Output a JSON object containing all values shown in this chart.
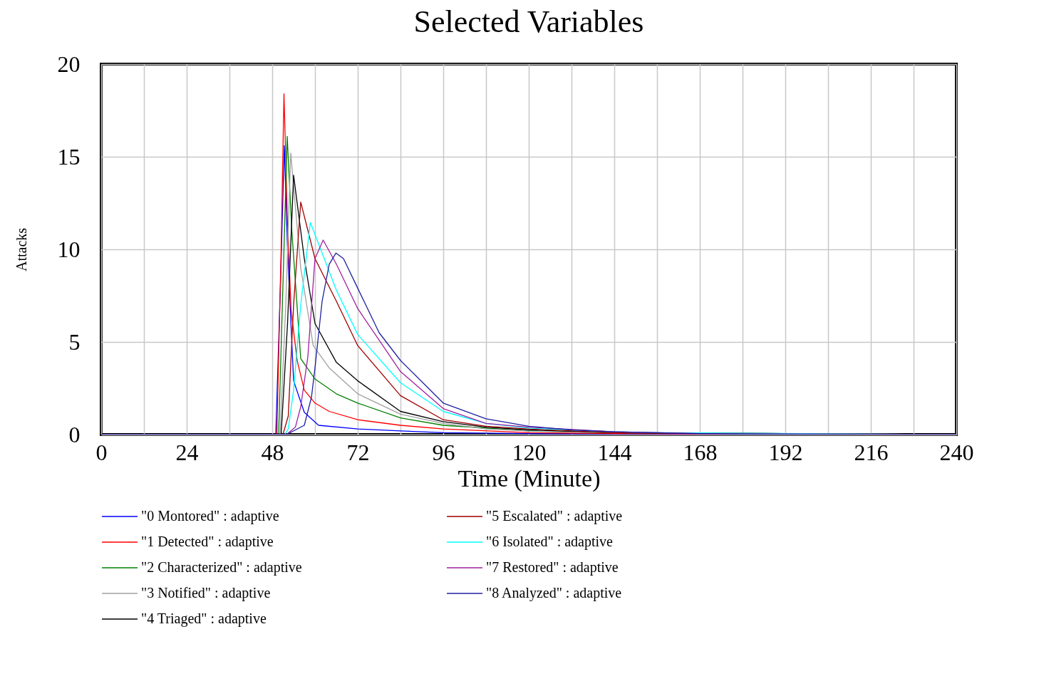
{
  "chart_data": {
    "type": "line",
    "title": "Selected Variables",
    "xlabel": "Time (Minute)",
    "ylabel": "Attacks",
    "xlim": [
      0,
      240
    ],
    "ylim": [
      0,
      20
    ],
    "xticks": [
      0,
      {
        "value": 12,
        "label": null
      },
      24,
      {
        "value": 36,
        "label": null
      },
      48,
      {
        "value": 60,
        "label": null
      },
      72,
      {
        "value": 84,
        "label": null
      },
      96,
      {
        "value": 108,
        "label": null
      },
      120,
      {
        "value": 132,
        "label": null
      },
      144,
      {
        "value": 156,
        "label": null
      },
      168,
      {
        "value": 180,
        "label": null
      },
      192,
      {
        "value": 204,
        "label": null
      },
      216,
      {
        "value": 228,
        "label": null
      },
      240
    ],
    "yticks": [
      0,
      5,
      10,
      15,
      20
    ],
    "grid": true,
    "legend": "bottom",
    "marker": "none",
    "line_style": "solid",
    "series": [
      {
        "name": "\"0 Montored\" : adaptive",
        "color": "#0000ff",
        "x": [
          0,
          49,
          50.3,
          51.4,
          52.3,
          54,
          57,
          61,
          72,
          84,
          96,
          120,
          240
        ],
        "values": [
          0,
          0,
          8,
          15.6,
          10,
          2.9,
          1.2,
          0.5,
          0.3,
          0.2,
          0.1,
          0.05,
          0
        ]
      },
      {
        "name": "\"1 Detected\" : adaptive",
        "color": "#ff0000",
        "x": [
          0,
          49.3,
          50.5,
          51.3,
          52.2,
          53.3,
          55,
          57,
          60,
          64,
          72,
          84,
          96,
          120,
          144,
          240
        ],
        "values": [
          0,
          0,
          10,
          18.4,
          12,
          6.7,
          4,
          2.4,
          1.7,
          1.25,
          0.8,
          0.5,
          0.3,
          0.1,
          0.05,
          0
        ]
      },
      {
        "name": "\"2 Characterized\" : adaptive",
        "color": "#008000",
        "x": [
          0,
          49.8,
          51,
          52.2,
          53.5,
          56,
          60,
          66,
          72,
          84,
          96,
          120,
          144,
          240
        ],
        "values": [
          0,
          0,
          8,
          16.1,
          11,
          4.1,
          3,
          2.2,
          1.7,
          0.9,
          0.5,
          0.2,
          0.1,
          0
        ]
      },
      {
        "name": "\"3 Notified\" : adaptive",
        "color": "#a0a0a0",
        "x": [
          0,
          50.2,
          51.8,
          53.2,
          56,
          59.5,
          64,
          72,
          84,
          96,
          108,
          120,
          144,
          240
        ],
        "values": [
          0,
          0,
          7,
          15.2,
          9,
          4.8,
          3.6,
          2.2,
          1.1,
          0.6,
          0.3,
          0.2,
          0.1,
          0
        ]
      },
      {
        "name": "\"4 Triaged\" : adaptive",
        "color": "#000000",
        "x": [
          0,
          50.5,
          52.3,
          54,
          57,
          60,
          66,
          72,
          84,
          96,
          108,
          120,
          144,
          240
        ],
        "values": [
          0,
          0,
          6,
          14,
          9.5,
          6,
          3.9,
          2.9,
          1.25,
          0.7,
          0.4,
          0.25,
          0.1,
          0
        ]
      },
      {
        "name": "\"5 Escalated\" : adaptive",
        "color": "#a00000",
        "x": [
          0,
          51,
          52.5,
          54,
          56,
          60,
          66,
          72,
          84,
          96,
          108,
          120,
          144,
          240
        ],
        "values": [
          0,
          0,
          1,
          7,
          12.55,
          9.5,
          7.2,
          4.8,
          2.1,
          0.8,
          0.45,
          0.3,
          0.1,
          0
        ]
      },
      {
        "name": "\"6 Isolated\" : adaptive",
        "color": "#00ffff",
        "x": [
          0,
          51.5,
          52.5,
          54,
          56,
          58.7,
          62,
          66,
          72,
          84,
          96,
          108,
          120,
          144,
          156,
          240
        ],
        "values": [
          0,
          0,
          0.3,
          2.4,
          7,
          11.45,
          9.8,
          7.8,
          5.4,
          2.8,
          1.25,
          0.6,
          0.35,
          0.15,
          0.1,
          0
        ]
      },
      {
        "name": "\"7 Restored\" : adaptive",
        "color": "#a020a0",
        "x": [
          0,
          52,
          54.5,
          56,
          58,
          60,
          62.3,
          66,
          72,
          84,
          96,
          108,
          120,
          144,
          168,
          240
        ],
        "values": [
          0,
          0,
          0.4,
          1.5,
          4.2,
          9.5,
          10.5,
          9.2,
          6.8,
          3.4,
          1.4,
          0.6,
          0.4,
          0.15,
          0.05,
          0
        ]
      },
      {
        "name": "\"8 Analyzed\" : adaptive",
        "color": "#2020a0",
        "x": [
          0,
          52,
          57,
          59,
          60,
          62,
          64,
          65.9,
          68,
          72,
          78,
          84,
          96,
          108,
          120,
          132,
          144,
          168,
          180,
          240
        ],
        "values": [
          0,
          0,
          0.5,
          2,
          3.6,
          7.2,
          9.2,
          9.8,
          9.5,
          7.9,
          5.5,
          4,
          1.7,
          0.85,
          0.45,
          0.25,
          0.15,
          0.05,
          0.02,
          0
        ]
      }
    ]
  }
}
